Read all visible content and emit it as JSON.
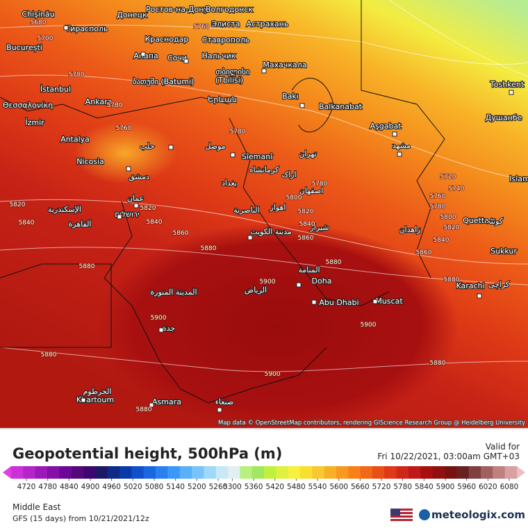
{
  "map": {
    "attribution": "Map data © OpenStreetMap contributors, rendering GIScience Research Group @ Heidelberg University",
    "places": [
      "Chişinău",
      "Тирасполь",
      "Донецк",
      "Ростов-на-Дону",
      "Волгодонск",
      "Элиста",
      "Астрахань",
      "Краснодар",
      "Ставрополь",
      "București",
      "Анапа",
      "Сочи",
      "Нальчик",
      "Махачкала",
      "თბილისი",
      "ბათუმი (Batumi)",
      "(Tbilisi)",
      "İstanbul",
      "Երևան",
      "Bakı",
      "Balkanabat",
      "Θεσσαλονίκη",
      "Ankara",
      "İzmir",
      "Aşgabat",
      "Toshkent",
      "Душанбе",
      "Antalya",
      "حلب",
      "موصل",
      "Nicosia",
      "Sîemanî",
      "تهران",
      "مشهد",
      "کرمانشاه",
      "دمشق",
      "بغداد",
      "اراک",
      "اصفهان",
      "Islam",
      "عمان",
      "الإسكندرية",
      "ירושלים",
      "القاهرة",
      "الناصرية",
      "اهواز",
      "شیراز",
      "مدينة الكويت",
      "زاهدان",
      "Quetta",
      "کوئٹہ",
      "Sukkur",
      "المنامة",
      "Doha",
      "Karachi",
      "کراچی",
      "المدينة المنورة",
      "الرياض",
      "Abu Dhabi",
      "Muscat",
      "جدة",
      "الخرطوم",
      "Khartoum",
      "Asmara",
      "صنعاء"
    ],
    "contour_labels": [
      5680,
      5700,
      5760,
      5780,
      5780,
      5760,
      5780,
      5720,
      5740,
      5760,
      5780,
      5800,
      5820,
      5840,
      5860,
      5780,
      5800,
      5820,
      5840,
      5860,
      5820,
      5840,
      5820,
      5840,
      5860,
      5880,
      5880,
      5880,
      5880,
      5900,
      5900,
      5900,
      5880,
      5880,
      5900,
      5880
    ]
  },
  "legend": {
    "title": "Geopotential height, 500hPa (m)",
    "valid_label": "Valid for",
    "valid_time": "Fri 10/22/2021, 03:00am GMT+03",
    "ticks": [
      4720,
      4780,
      4840,
      4900,
      4960,
      5020,
      5080,
      5140,
      5200,
      5260,
      5300,
      5360,
      5420,
      5480,
      5540,
      5600,
      5660,
      5720,
      5780,
      5840,
      5900,
      5960,
      6020,
      6080
    ],
    "colors": [
      "#e040e0",
      "#cc30d8",
      "#b424c8",
      "#9c18b8",
      "#8410a8",
      "#6c0898",
      "#54087c",
      "#3c0870",
      "#1c1868",
      "#102a88",
      "#0a3aa8",
      "#1050c8",
      "#1a68e0",
      "#2a80f0",
      "#3c98f8",
      "#58b0f8",
      "#78c4f8",
      "#a0d8f8",
      "#c8e8f8",
      "#e0f0f0",
      "#b8f080",
      "#a0e860",
      "#c0f040",
      "#e0f040",
      "#f8f040",
      "#f8e030",
      "#f8c830",
      "#f8b028",
      "#f89820",
      "#f88018",
      "#f06818",
      "#e85018",
      "#e03818",
      "#d02818",
      "#c01818",
      "#a81010",
      "#901010",
      "#781010",
      "#682020",
      "#804040",
      "#a06060",
      "#c08080",
      "#d8a0a0",
      "#e8c0c0"
    ]
  },
  "footer": {
    "region": "Middle East",
    "model": "GFS (15 days)  from  10/21/2021/12z",
    "brand": "meteologix.com"
  }
}
